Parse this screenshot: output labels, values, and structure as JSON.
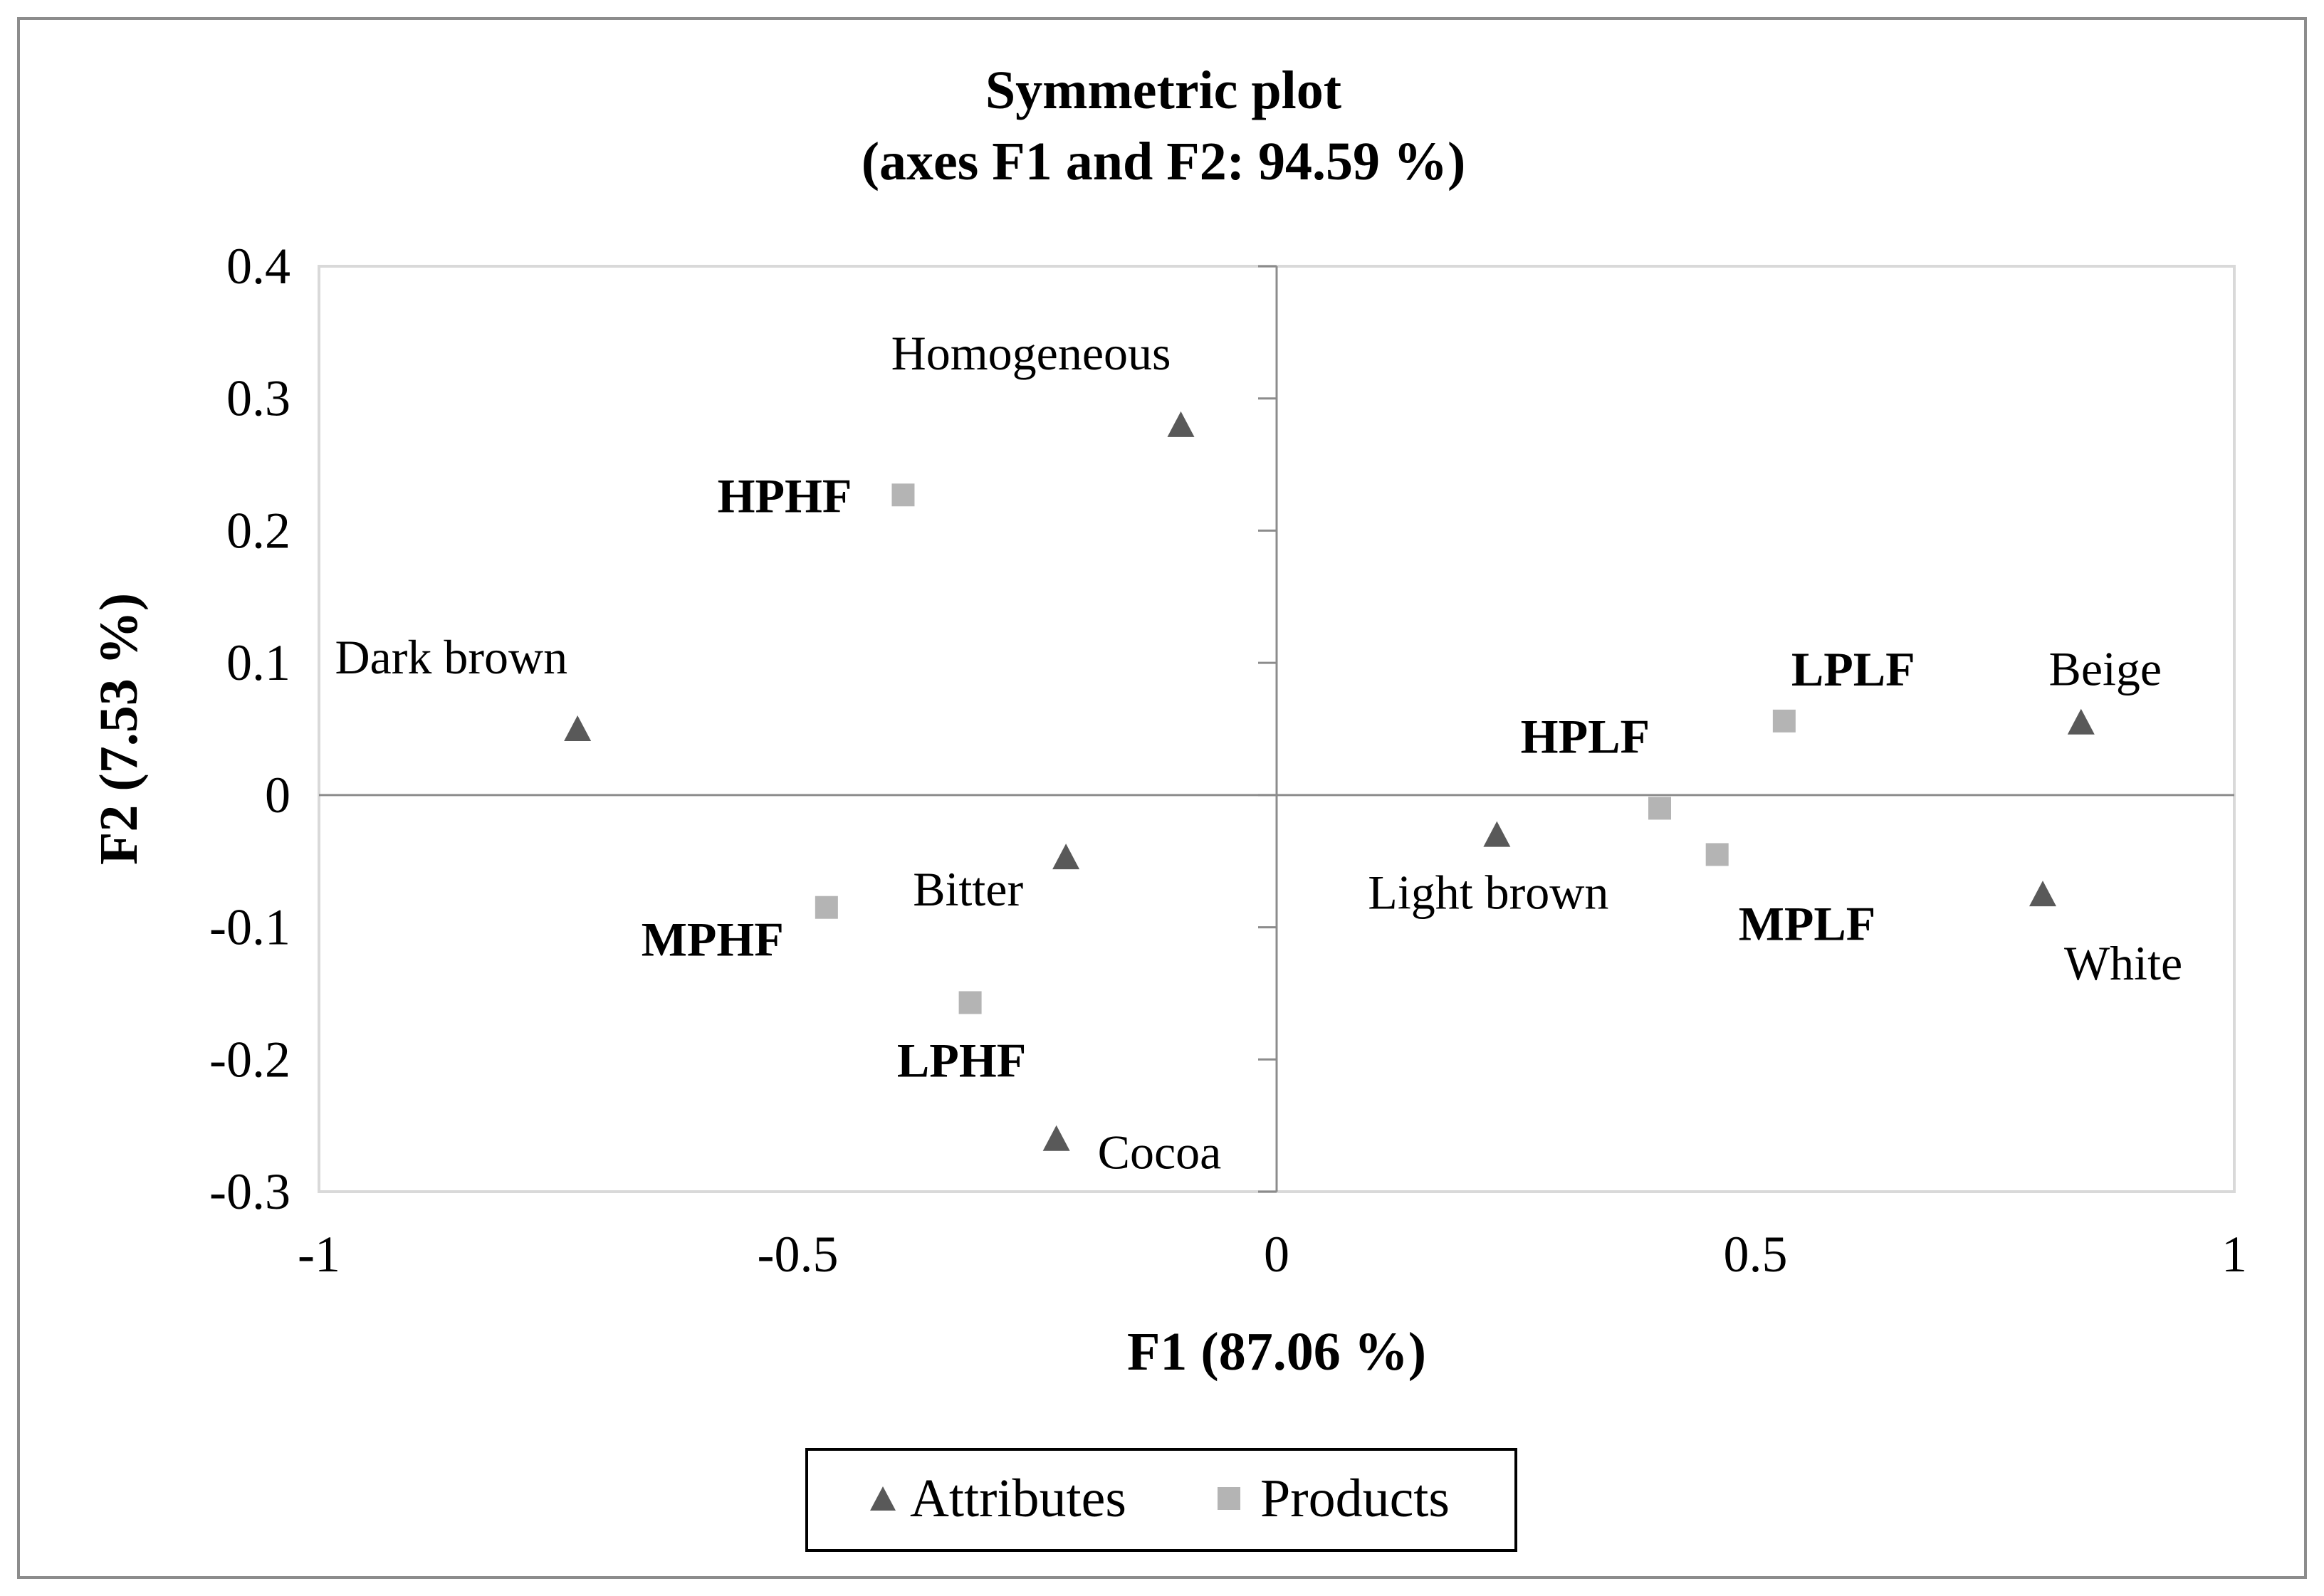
{
  "chart_data": {
    "type": "scatter",
    "title": "Symmetric plot",
    "subtitle": "(axes F1 and F2: 94.59 %)",
    "xlabel": "F1 (87.06 %)",
    "ylabel": "F2 (7.53 %)",
    "xlim": [
      -1,
      1
    ],
    "ylim": [
      -0.3,
      0.4
    ],
    "x_ticks": [
      -1,
      -0.5,
      0,
      0.5,
      1
    ],
    "x_tick_labels": [
      "-1",
      "-0.5",
      "0",
      "0.5",
      "1"
    ],
    "y_ticks": [
      0.4,
      0.3,
      0.2,
      0.1,
      0,
      -0.1,
      -0.2,
      -0.3
    ],
    "y_tick_labels": [
      "0.4",
      "0.3",
      "0.2",
      "0.1",
      "0",
      "-0.1",
      "-0.2",
      "-0.3"
    ],
    "grid": false,
    "legend_position": "bottom-center",
    "series": [
      {
        "name": "Attributes",
        "marker": "triangle",
        "color": "#595959",
        "label_bold": false,
        "points": [
          {
            "label": "Homogeneous",
            "x": -0.1,
            "y": 0.28,
            "label_pos": "top-left"
          },
          {
            "label": "Dark brown",
            "x": -0.73,
            "y": 0.05,
            "label_pos": "top-left"
          },
          {
            "label": "Bitter",
            "x": -0.22,
            "y": -0.047,
            "label_pos": "bottom-left"
          },
          {
            "label": "Cocoa",
            "x": -0.23,
            "y": -0.26,
            "label_pos": "right"
          },
          {
            "label": "Light brown",
            "x": 0.23,
            "y": -0.03,
            "label_pos": "bottom"
          },
          {
            "label": "Beige",
            "x": 0.84,
            "y": 0.055,
            "label_pos": "top"
          },
          {
            "label": "White",
            "x": 0.8,
            "y": -0.075,
            "label_pos": "bottom-right"
          }
        ]
      },
      {
        "name": "Products",
        "marker": "square",
        "color": "#b4b4b4",
        "label_bold": true,
        "points": [
          {
            "label": "HPHF",
            "x": -0.39,
            "y": 0.227,
            "label_pos": "left"
          },
          {
            "label": "MPHF",
            "x": -0.47,
            "y": -0.085,
            "label_pos": "bottom-left"
          },
          {
            "label": "LPHF",
            "x": -0.32,
            "y": -0.157,
            "label_pos": "bottom"
          },
          {
            "label": "LPLF",
            "x": 0.53,
            "y": 0.056,
            "label_pos": "top-right"
          },
          {
            "label": "HPLF",
            "x": 0.4,
            "y": -0.01,
            "label_pos": "top-left"
          },
          {
            "label": "MPLF",
            "x": 0.46,
            "y": -0.045,
            "label_pos": "bottom-right"
          }
        ]
      }
    ]
  }
}
